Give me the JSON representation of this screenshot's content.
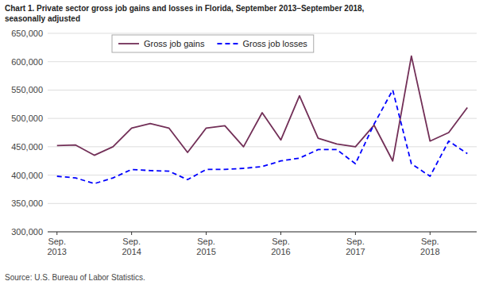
{
  "chart_data": {
    "type": "line",
    "title": "Chart 1. Private sector gross job gains and losses in Florida, September 2013–September 2018,\nseasonally adjusted",
    "source": "Source: U.S. Bureau of Labor Statistics.",
    "categories": [
      "Sep.\n2013",
      null,
      null,
      null,
      "Sep.\n2014",
      null,
      null,
      null,
      "Sep.\n2015",
      null,
      null,
      null,
      "Sep.\n2016",
      null,
      null,
      null,
      "Sep.\n2017",
      null,
      null,
      null,
      "Sep.\n2018",
      null,
      null
    ],
    "series": [
      {
        "name": "Gross job gains",
        "color": "#722f57",
        "line_style": "solid",
        "values": [
          452000,
          453000,
          435000,
          450000,
          483000,
          491000,
          483000,
          440000,
          483000,
          487000,
          450000,
          510000,
          462000,
          540000,
          465000,
          455000,
          450000,
          488000,
          425000,
          610000,
          460000,
          475000,
          519000
        ]
      },
      {
        "name": "Gross job losses",
        "color": "#0000ff",
        "line_style": "dashed",
        "values": [
          398000,
          395000,
          385000,
          395000,
          410000,
          408000,
          407000,
          392000,
          410000,
          410000,
          412000,
          415000,
          425000,
          430000,
          445000,
          445000,
          420000,
          490000,
          550000,
          420000,
          398000,
          460000,
          438000
        ]
      }
    ],
    "ylim": [
      300000,
      650000
    ],
    "yticks": [
      {
        "value": 300000,
        "label": "300,000"
      },
      {
        "value": 350000,
        "label": "350,000"
      },
      {
        "value": 400000,
        "label": "400,000"
      },
      {
        "value": 450000,
        "label": "450,000"
      },
      {
        "value": 500000,
        "label": "500,000"
      },
      {
        "value": 550000,
        "label": "550,000"
      },
      {
        "value": 600000,
        "label": "600,000"
      },
      {
        "value": 650000,
        "label": "650,000"
      }
    ],
    "grid": true,
    "legend": "upper left"
  }
}
